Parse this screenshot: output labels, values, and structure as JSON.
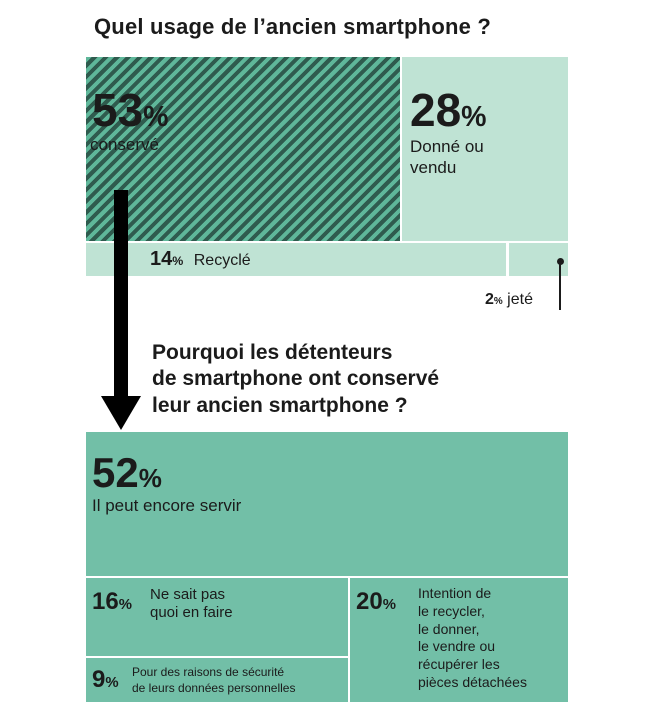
{
  "colors": {
    "light": "#bfe3d4",
    "dark": "#2f5b4e",
    "hatch_bg": "#5fb79a",
    "teal": "#72bfa7",
    "text": "#1b1b1b"
  },
  "chart_data": [
    {
      "type": "treemap",
      "title": "Quel usage de l’ancien smartphone ?",
      "items": [
        {
          "key": "conserve",
          "value": 53,
          "pct": "53",
          "label": "conservé"
        },
        {
          "key": "donne",
          "value": 28,
          "pct": "28",
          "label_lines": [
            "Donné ou",
            "vendu"
          ]
        },
        {
          "key": "recycle",
          "value": 14,
          "pct": "14",
          "label": "Recyclé"
        },
        {
          "key": "jete",
          "value": 2,
          "pct": "2",
          "label": "jeté"
        }
      ]
    },
    {
      "type": "treemap",
      "title_lines": [
        "Pourquoi les détenteurs",
        "de smartphone ont conservé",
        "leur ancien smartphone ?"
      ],
      "items": [
        {
          "key": "servir",
          "value": 52,
          "pct": "52",
          "label": "Il peut encore servir"
        },
        {
          "key": "nesaitpas",
          "value": 16,
          "pct": "16",
          "label_lines": [
            "Ne sait pas",
            "quoi en faire"
          ]
        },
        {
          "key": "intention",
          "value": 20,
          "pct": "20",
          "label_lines": [
            "Intention de",
            "le recycler,",
            "le donner,",
            "le vendre ou",
            "récupérer les",
            "pièces détachées"
          ]
        },
        {
          "key": "securite",
          "value": 9,
          "pct": "9",
          "label_lines": [
            "Pour des raisons de sécurité",
            "de leurs données personnelles"
          ]
        }
      ]
    }
  ],
  "percent_sign": "%"
}
